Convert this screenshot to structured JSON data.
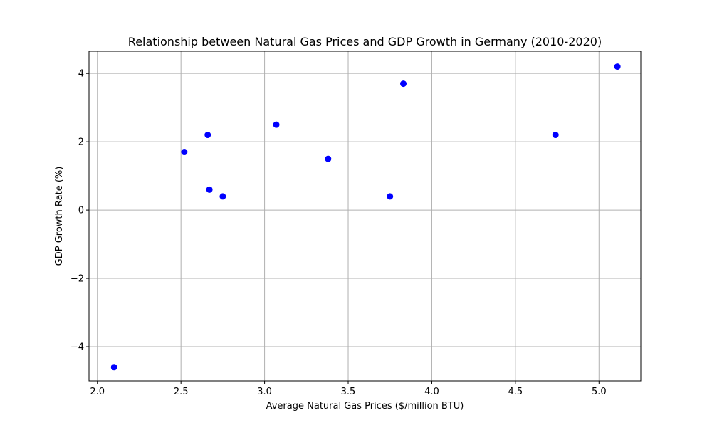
{
  "chart_data": {
    "type": "scatter",
    "title": "Relationship between Natural Gas Prices and GDP Growth in Germany (2010-2020)",
    "xlabel": "Average Natural Gas Prices ($/million BTU)",
    "ylabel": "GDP Growth Rate (%)",
    "xlim": [
      1.95,
      5.25
    ],
    "ylim": [
      -5.0,
      4.65
    ],
    "xticks": [
      2.0,
      2.5,
      3.0,
      3.5,
      4.0,
      4.5,
      5.0
    ],
    "xtick_labels": [
      "2.0",
      "2.5",
      "3.0",
      "3.5",
      "4.0",
      "4.5",
      "5.0"
    ],
    "yticks": [
      -4,
      -2,
      0,
      2,
      4
    ],
    "ytick_labels": [
      "−4",
      "−2",
      "0",
      "2",
      "4"
    ],
    "grid": true,
    "marker_color": "#0000ff",
    "points": [
      {
        "x": 2.1,
        "y": -4.6
      },
      {
        "x": 2.52,
        "y": 1.7
      },
      {
        "x": 2.66,
        "y": 2.2
      },
      {
        "x": 2.67,
        "y": 0.6
      },
      {
        "x": 2.75,
        "y": 0.4
      },
      {
        "x": 3.07,
        "y": 2.5
      },
      {
        "x": 3.38,
        "y": 1.5
      },
      {
        "x": 3.75,
        "y": 0.4
      },
      {
        "x": 3.83,
        "y": 3.7
      },
      {
        "x": 4.74,
        "y": 2.2
      },
      {
        "x": 5.11,
        "y": 4.2
      }
    ]
  }
}
